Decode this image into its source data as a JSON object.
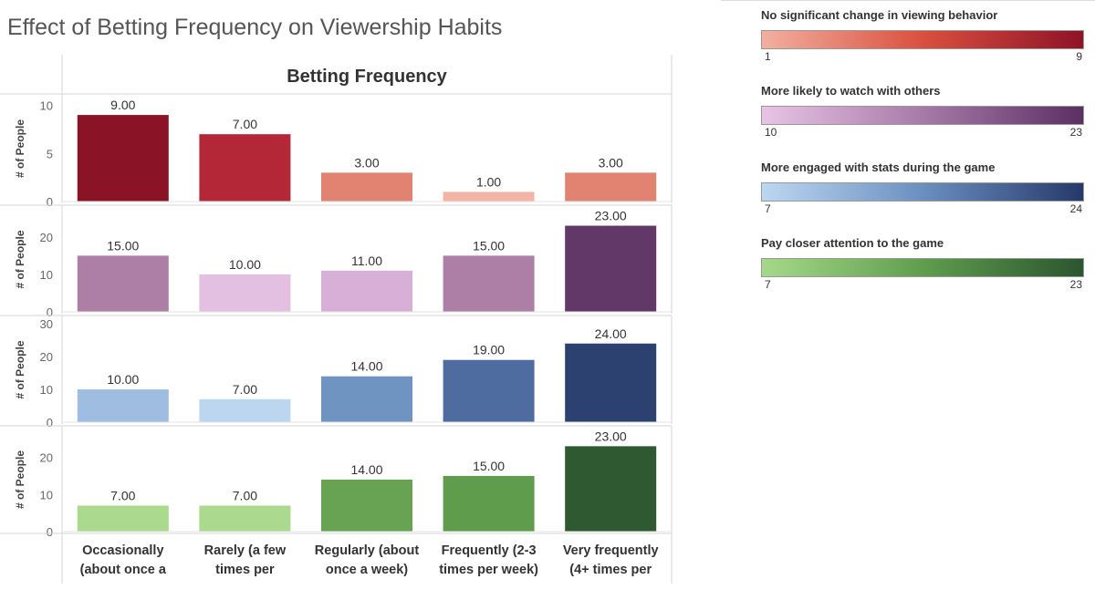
{
  "title": "Effect of Betting Frequency on Viewership Habits",
  "chart_data": {
    "type": "bar",
    "header": "Betting Frequency",
    "ylabel": "# of People",
    "categories": [
      [
        "Occasionally",
        "(about once a"
      ],
      [
        "Rarely (a few",
        "times per"
      ],
      [
        "Regularly (about",
        "once a week)"
      ],
      [
        "Frequently (2-3",
        "times per week)"
      ],
      [
        "Very frequently",
        "(4+ times per"
      ]
    ],
    "series": [
      {
        "name": "No significant change in viewing behavior",
        "values": [
          9,
          7,
          3,
          1,
          3
        ],
        "labels": [
          "9.00",
          "7.00",
          "3.00",
          "1.00",
          "3.00"
        ],
        "ylim": [
          0,
          11
        ],
        "ticks": [
          0,
          5,
          10
        ],
        "colors": [
          "#8a1326",
          "#b32737",
          "#e28371",
          "#f2b5a5",
          "#e28371"
        ]
      },
      {
        "name": "More likely to watch with others",
        "values": [
          15,
          10,
          11,
          15,
          23
        ],
        "labels": [
          "15.00",
          "10.00",
          "11.00",
          "15.00",
          "23.00"
        ],
        "ylim": [
          0,
          28
        ],
        "ticks": [
          0,
          10,
          20
        ],
        "colors": [
          "#ad7fa6",
          "#e3bfe1",
          "#d8b0d7",
          "#ad7fa6",
          "#623868"
        ]
      },
      {
        "name": "More engaged with stats during the game",
        "values": [
          10,
          7,
          14,
          19,
          24
        ],
        "labels": [
          "10.00",
          "7.00",
          "14.00",
          "19.00",
          "24.00"
        ],
        "ylim": [
          0,
          32
        ],
        "ticks": [
          0,
          10,
          20,
          30
        ],
        "colors": [
          "#9ebde0",
          "#bcd6ef",
          "#6f94c2",
          "#4e6c9f",
          "#2c4170"
        ]
      },
      {
        "name": "Pay closer attention to the game",
        "values": [
          7,
          7,
          14,
          15,
          23
        ],
        "labels": [
          "7.00",
          "7.00",
          "14.00",
          "15.00",
          "23.00"
        ],
        "ylim": [
          0,
          28
        ],
        "ticks": [
          0,
          10,
          20
        ],
        "colors": [
          "#abd98e",
          "#abd98e",
          "#67a352",
          "#5f9c4b",
          "#2f5a31"
        ]
      }
    ]
  },
  "legend": [
    {
      "title": "No significant change in viewing behavior",
      "min": "1",
      "max": "9",
      "from": "#f2b0a0",
      "mid": "#d9503f",
      "to": "#8e1327"
    },
    {
      "title": "More likely to watch with others",
      "min": "10",
      "max": "23",
      "from": "#e8c4e6",
      "mid": "#a77aa8",
      "to": "#5a3062"
    },
    {
      "title": "More engaged with stats during the game",
      "min": "7",
      "max": "24",
      "from": "#bcd7f1",
      "mid": "#6b8fc0",
      "to": "#26396a"
    },
    {
      "title": "Pay closer attention to the game",
      "min": "7",
      "max": "23",
      "from": "#a5d98a",
      "mid": "#5f9e4d",
      "to": "#2b5530"
    }
  ]
}
